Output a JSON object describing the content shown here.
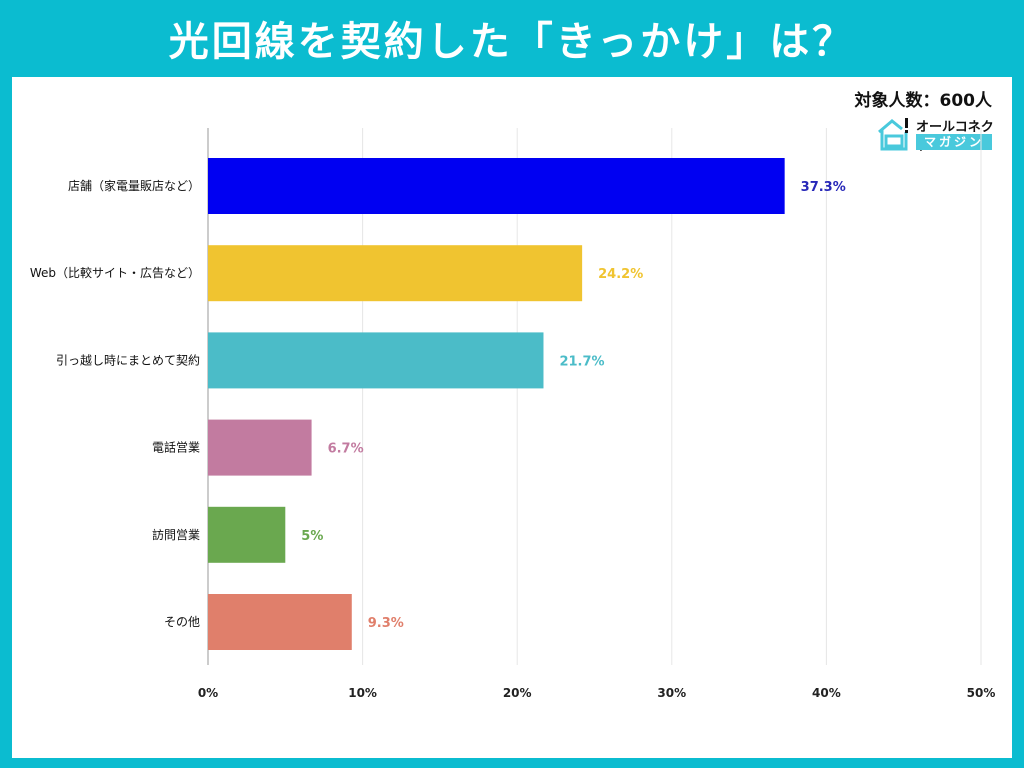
{
  "header": {
    "title": "光回線を契約した「きっかけ」は？"
  },
  "sample_size": "対象人数：600人",
  "logo": {
    "line1": "オールコネクト",
    "line2": "マガジン"
  },
  "colors": {
    "frame": "#0bbcd0"
  },
  "chart_data": {
    "type": "bar",
    "orientation": "horizontal",
    "title": "光回線を契約した「きっかけ」は？",
    "categories": [
      "店舗（家電量販店など）",
      "Web（比較サイト・広告など）",
      "引っ越し時にまとめて契約",
      "電話営業",
      "訪問営業",
      "その他"
    ],
    "values": [
      37.3,
      24.2,
      21.7,
      6.7,
      5,
      9.3
    ],
    "data_labels": [
      "37.3%",
      "24.2%",
      "21.7%",
      "6.7%",
      "5%",
      "9.3%"
    ],
    "bar_colors": [
      "#0000f2",
      "#f0c430",
      "#4bbcc8",
      "#c27ba0",
      "#6aa84f",
      "#e07f6b"
    ],
    "label_colors": [
      "#2727b8",
      "#f0c430",
      "#4bbcc8",
      "#c27ba0",
      "#6aa84f",
      "#e07f6b"
    ],
    "xlim": [
      0,
      50
    ],
    "xticks": [
      "0%",
      "10%",
      "20%",
      "30%",
      "40%",
      "50%"
    ],
    "grid": true,
    "legend": "none"
  }
}
